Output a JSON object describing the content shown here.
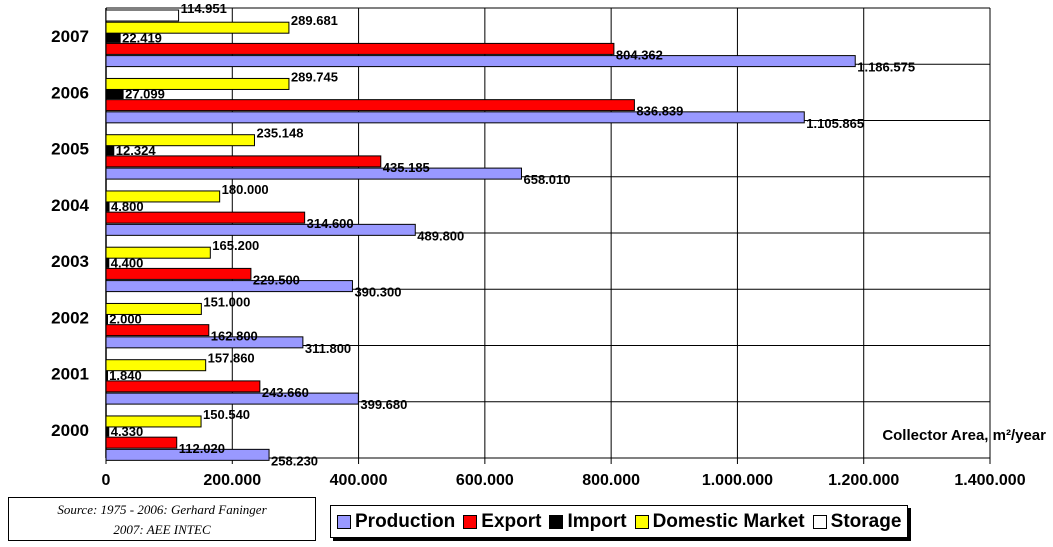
{
  "chart_data": {
    "type": "bar",
    "orientation": "horizontal",
    "categories": [
      "2000",
      "2001",
      "2002",
      "2003",
      "2004",
      "2005",
      "2006",
      "2007"
    ],
    "series": [
      {
        "name": "Production",
        "color": "#9999ff",
        "values": [
          258230,
          399680,
          311800,
          390300,
          489800,
          658010,
          1105865,
          1186575
        ],
        "labels": [
          "258.230",
          "399.680",
          "311.800",
          "390.300",
          "489.800",
          "658.010",
          "1.105.865",
          "1.186.575"
        ]
      },
      {
        "name": "Export",
        "color": "#ff0000",
        "values": [
          112020,
          243660,
          162800,
          229500,
          314600,
          435185,
          836839,
          804362
        ],
        "labels": [
          "112.020",
          "243.660",
          "162.800",
          "229.500",
          "314.600",
          "435.185",
          "836.839",
          "804.362"
        ]
      },
      {
        "name": "Import",
        "color": "#000000",
        "values": [
          4330,
          1840,
          2000,
          4400,
          4800,
          12324,
          27099,
          22419
        ],
        "labels": [
          "4.330",
          "1.840",
          "2.000",
          "4.400",
          "4.800",
          "12.324",
          "27.099",
          "22.419"
        ]
      },
      {
        "name": "Domestic Market",
        "color": "#ffff00",
        "values": [
          150540,
          157860,
          151000,
          165200,
          180000,
          235148,
          289745,
          289681
        ],
        "labels": [
          "150.540",
          "157.860",
          "151.000",
          "165.200",
          "180.000",
          "235.148",
          "289.745",
          "289.681"
        ]
      },
      {
        "name": "Storage",
        "color": "#ffffff",
        "values": [
          null,
          null,
          null,
          null,
          null,
          null,
          null,
          114951
        ],
        "labels": [
          null,
          null,
          null,
          null,
          null,
          null,
          null,
          "114.951"
        ]
      }
    ],
    "xlabel": "Collector Area, m²/year",
    "xlim": [
      0,
      1400000
    ],
    "xticks": [
      0,
      200000,
      400000,
      600000,
      800000,
      1000000,
      1200000,
      1400000
    ],
    "xtick_labels": [
      "0",
      "200.000",
      "400.000",
      "600.000",
      "800.000",
      "1.000.000",
      "1.200.000",
      "1.400.000"
    ],
    "grid": true,
    "legend": "bottom"
  },
  "source": {
    "line1": "Source: 1975 - 2006: Gerhard Faninger",
    "line2": "2007: AEE INTEC"
  }
}
